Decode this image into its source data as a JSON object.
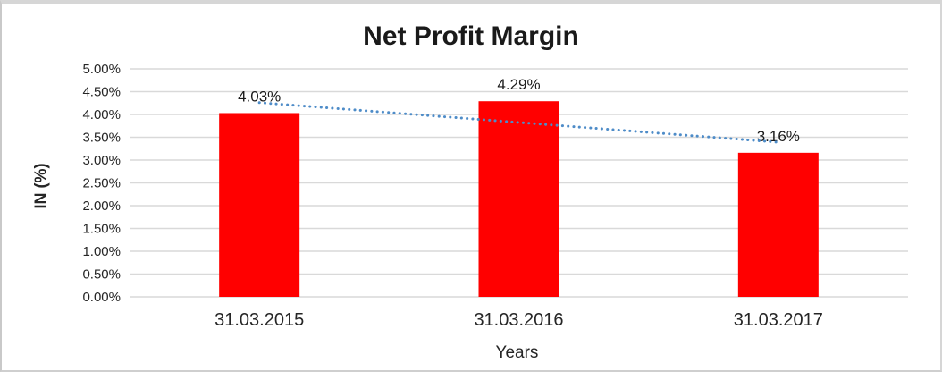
{
  "chart_data": {
    "type": "bar",
    "title": "Net Profit Margin",
    "xlabel": "Years",
    "ylabel": "IN (%)",
    "categories": [
      "31.03.2015",
      "31.03.2016",
      "31.03.2017"
    ],
    "values": [
      4.03,
      4.29,
      3.16
    ],
    "data_labels": [
      "4.03%",
      "4.29%",
      "3.16%"
    ],
    "ylim": [
      0,
      5
    ],
    "ytick_step": 0.5,
    "ytick_labels": [
      "0.00%",
      "0.50%",
      "1.00%",
      "1.50%",
      "2.00%",
      "2.50%",
      "3.00%",
      "3.50%",
      "4.00%",
      "4.50%",
      "5.00%"
    ],
    "grid": true,
    "legend": "none",
    "trendline": {
      "type": "linear",
      "style": "dotted",
      "values": [
        4.26,
        3.83,
        3.39
      ]
    },
    "colors": {
      "bar": "#FF0000",
      "trendline": "#4E8CC8",
      "gridline": "#D9D9D9",
      "axis_line": "#D9D9D9",
      "text": "#262626",
      "title": "#1A1A1A"
    }
  }
}
